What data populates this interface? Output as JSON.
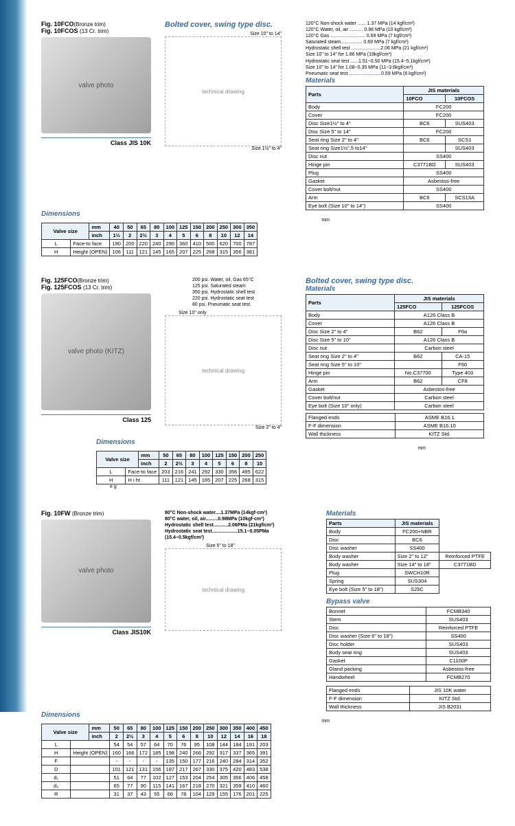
{
  "s1": {
    "fig1": "Fig. 10FCO",
    "fig1p": "(Bronze trim)",
    "fig2": "Fig. 10FCOS",
    "fig2p": "(13 Cr. trim)",
    "cls": "Class JIS 10K",
    "bolted": "Bolted cover, swing type disc.",
    "sz1": "Size 10\" to 14\"",
    "sz2": "Size 1½\" to 4\"",
    "specs": [
      "120°C Non-shock water ...... 1.37 MPa (14 kgf/cm²)",
      "120°C Water, oil, air .......... 0.98 MPa (10 kgf/cm²)",
      "120°C Gas .......................... 0.69 MPa (7 kgf/cm²)",
      "Saturated steam................ 0.69 MPa (7 kgf/cm²)",
      "Hydrostatic shell test ......................2.06 MPa (21 kgf/cm²)",
      "Size 10\" to 14\" for 1.86 MPa (19kgf/cm²)",
      "Hydrostatic seat test ......1.51~0.50 MPa (15.4~5.1kgf/cm²)",
      "Size 10\" to 14\" for 1.08~0.35 MPa (11~3.6kgf/cm²)",
      "Pneumatic seat test ........................0.59 MPa (6 kgf/cm²)"
    ],
    "mat_title": "Materials",
    "mat_h": [
      "Parts",
      "JIS materials"
    ],
    "mat_sub": [
      "10FCO",
      "10FCOS"
    ],
    "mat_rows": [
      [
        "Body",
        "FC200",
        ""
      ],
      [
        "Cover",
        "FC200",
        ""
      ],
      [
        "Disc | Size1½\" to 4\"",
        "BC6",
        "SUS403"
      ],
      [
        "Disc | Size 5\" to 14\"",
        "FC200",
        ""
      ],
      [
        "Seat ring | Size 2\" to 4\"",
        "BC6",
        "SCS1"
      ],
      [
        "Seat ring | Size1½\",5 to14\"",
        "",
        "SUS403"
      ],
      [
        "Disc nut",
        "SS400",
        ""
      ],
      [
        "Hinge pin",
        "C3771BD",
        "SUS403"
      ],
      [
        "Plug",
        "SS400",
        ""
      ],
      [
        "Gasket",
        "Asbestos-free",
        ""
      ],
      [
        "Cover bolt/nut",
        "SS400",
        ""
      ],
      [
        "Arm",
        "BC6",
        "SCS13A"
      ],
      [
        "Eye bolt (Size 10\" to 14\")",
        "SS400",
        ""
      ]
    ],
    "dim_title": "Dimensions",
    "dim_vs": "Valve size",
    "dim_mm": [
      "40",
      "50",
      "65",
      "80",
      "100",
      "125",
      "150",
      "200",
      "250",
      "300",
      "350"
    ],
    "dim_in": [
      "1½",
      "2",
      "2½",
      "3",
      "4",
      "5",
      "6",
      "8",
      "10",
      "12",
      "14"
    ],
    "dim_L": [
      "L",
      "Face-to face",
      "190",
      "200",
      "220",
      "240",
      "290",
      "360",
      "410",
      "500",
      "620",
      "700",
      "787"
    ],
    "dim_H": [
      "H",
      "Height (OPEN)",
      "106",
      "111",
      "121",
      "145",
      "165",
      "207",
      "225",
      "268",
      "315",
      "356",
      "381"
    ]
  },
  "s2": {
    "fig1": "Fig. 125FCO",
    "fig1p": "(Bronze trim)",
    "fig2": "Fig. 125FCOS",
    "fig2p": "(13 Cr. trim)",
    "cls": "Class 125",
    "sz1": "Size 10\" only",
    "sz2": "Size 2\" to 4\"",
    "bolted": "Bolted cover, swing type disc.",
    "specs": [
      "200 psi.    Water, oil, Gas  65°C",
      "125 psi.    Saturated steam",
      "350 psi.    Hydrostatic shell test",
      "220 psi.    Hydrostatic seat test",
      "80 psi.     Pneumatic seat test"
    ],
    "mat_title": "Materials",
    "mat_sub": [
      "125FCO",
      "125FCOS"
    ],
    "mat_rows": [
      [
        "Body",
        "A126 Class B",
        ""
      ],
      [
        "Cover",
        "A126 Class B",
        ""
      ],
      [
        "Disc | Size 2\" to 4\"",
        "B62",
        "F6a"
      ],
      [
        "Disc | Size 5\" to 10\"",
        "A126 Class B",
        ""
      ],
      [
        "Disc nut",
        "Carbon steel",
        ""
      ],
      [
        "Seat ring | Size 2\" to 4\"",
        "B62",
        "CA-15"
      ],
      [
        "Seat ring | Size 5\" to 10\"",
        "",
        "F60"
      ],
      [
        "Hinge pin",
        "No.C37700",
        "Type 403"
      ],
      [
        "Arm",
        "B62",
        "CF8"
      ],
      [
        "Gasket",
        "Asbestos-free",
        ""
      ],
      [
        "Cover bolt/nut",
        "Carbon steel",
        ""
      ],
      [
        "Eye bolt (Size 10\" only)",
        "Carbon steel",
        ""
      ]
    ],
    "std_rows": [
      [
        "Flanged ends",
        "ASME B16.1"
      ],
      [
        "F-F dimension",
        "ASME B16.10"
      ],
      [
        "Wall thickness",
        "KITZ Std."
      ]
    ],
    "dim_mm": [
      "50",
      "65",
      "80",
      "100",
      "125",
      "150",
      "200",
      "250"
    ],
    "dim_in": [
      "2",
      "2½",
      "3",
      "4",
      "5",
      "6",
      "8",
      "10"
    ],
    "dim_L": [
      "L",
      "Face-to face",
      "203",
      "216",
      "241",
      "292",
      "330",
      "356",
      "495",
      "622"
    ],
    "dim_H": [
      "H",
      "H i ht",
      "111",
      "121",
      "145",
      "165",
      "207",
      "225",
      "268",
      "315"
    ],
    "eg": "e g"
  },
  "s3": {
    "fig1": "Fig. 10FW",
    "fig1p": "(Bronze trim)",
    "cls": "Class JIS10K",
    "sz1": "Size 5\" to 18\"",
    "specs": [
      "80°C Non-shock water....1.37MPa (14kgf·cm²)",
      "80°C water, oil, air.........0.98MPa (10kgf·cm²)",
      "Hydrostatic shell test...........2.06PMa (21kgf/cm²)",
      "Hydrostatic seat test...................15.1~0.05PMa",
      "(15.4~0.5kgf/cm²)"
    ],
    "mat_title": "Materials",
    "mat_h": [
      "Parts",
      "JIS materials"
    ],
    "mat_rows": [
      [
        "Body",
        "FC200+NBR"
      ],
      [
        "Disc",
        "BC6"
      ],
      [
        "Disc washer",
        "SS400"
      ],
      [
        "Body washer | Size 2\" to 12\"",
        "Reinforced PTFE"
      ],
      [
        "Body washer | Size 14\" to 18\"",
        "C3771BD"
      ],
      [
        "Plug",
        "SWCH10R"
      ],
      [
        "Spring",
        "SUS304"
      ],
      [
        "Eye bolt (Size 5\" to 18\")",
        "S25C"
      ]
    ],
    "bypass_title": "Bypass valve",
    "bypass_rows": [
      [
        "Bonnet",
        "FCMB340"
      ],
      [
        "Stem",
        "SUS403"
      ],
      [
        "Disc",
        "Reinforced PTFE"
      ],
      [
        "Disc washer (Size 6\" to 18\")",
        "SS400"
      ],
      [
        "Disc holder",
        "SUS403"
      ],
      [
        "Body seat ring",
        "SUS403"
      ],
      [
        "Gasket",
        "C1100P"
      ],
      [
        "Gland packing",
        "Asbestos-free"
      ],
      [
        "Handwheel",
        "FCMB270"
      ]
    ],
    "std_rows": [
      [
        "Flanged ends",
        "JIS 10K water"
      ],
      [
        "F-F dimension",
        "KITZ Std."
      ],
      [
        "Wall thickness",
        "JIS B2031"
      ]
    ],
    "dim_mm": [
      "50",
      "65",
      "80",
      "100",
      "125",
      "150",
      "200",
      "250",
      "300",
      "350",
      "400",
      "450"
    ],
    "dim_in": [
      "2",
      "2½",
      "3",
      "4",
      "5",
      "6",
      "8",
      "10",
      "12",
      "14",
      "16",
      "18"
    ],
    "dim_rows": [
      [
        "L",
        "",
        "54",
        "54",
        "57",
        "64",
        "70",
        "76",
        "95",
        "108",
        "144",
        "184",
        "191",
        "203"
      ],
      [
        "H",
        "Height (OPEN)",
        "160",
        "166",
        "172",
        "185",
        "198",
        "240",
        "266",
        "292",
        "317",
        "337",
        "365",
        "391"
      ],
      [
        "F",
        "",
        "-",
        "-",
        "-",
        "-",
        "135",
        "150",
        "177",
        "216",
        "240",
        "284",
        "314",
        "352"
      ],
      [
        "D",
        "",
        "101",
        "121",
        "131",
        "156",
        "187",
        "217",
        "267",
        "330",
        "375",
        "420",
        "483",
        "538"
      ],
      [
        "d₁",
        "",
        "51",
        "64",
        "77",
        "102",
        "127",
        "153",
        "204",
        "254",
        "305",
        "356",
        "406",
        "458"
      ],
      [
        "d₂",
        "",
        "65",
        "77",
        "90",
        "115",
        "141",
        "167",
        "218",
        "270",
        "321",
        "359",
        "410",
        "460"
      ],
      [
        "R",
        "",
        "31",
        "37",
        "43",
        "55",
        "66",
        "78",
        "104",
        "129",
        "155",
        "176",
        "201",
        "225"
      ]
    ]
  }
}
